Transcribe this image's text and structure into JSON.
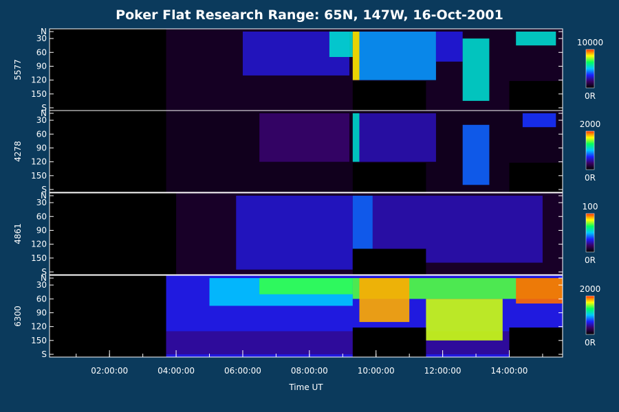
{
  "chart_data": {
    "type": "heatmap",
    "title": "Poker Flat Research Range: 65N, 147W, 16-Oct-2001",
    "xlabel": "Time UT",
    "x_ticks": [
      "02:00:00",
      "04:00:00",
      "06:00:00",
      "08:00:00",
      "10:00:00",
      "12:00:00",
      "14:00:00"
    ],
    "x_range_hours": [
      0.2,
      15.6
    ],
    "y_tick_labels": [
      "N",
      "30",
      "60",
      "90",
      "120",
      "150",
      "S"
    ],
    "y_range_deg": [
      15,
      180
    ],
    "colormap": [
      "#000000",
      "#3a0060",
      "#1a20ff",
      "#00c8ff",
      "#00ff60",
      "#ffff00",
      "#ff3000"
    ],
    "panels": [
      {
        "label": "5577",
        "cb_max": "10000",
        "cb_min": "0R",
        "data_start_hour": 3.7,
        "background_level": 0.06,
        "blank_intervals": [
          {
            "start_hour": 9.3,
            "end_hour": 11.5,
            "from_deg": 122
          },
          {
            "start_hour": 14.0,
            "end_hour": 15.6,
            "from_deg": 122
          }
        ],
        "features": [
          {
            "start_hour": 6.0,
            "end_hour": 9.2,
            "from_deg": 15,
            "to_deg": 110,
            "level": 0.28
          },
          {
            "start_hour": 8.6,
            "end_hour": 9.3,
            "from_deg": 15,
            "to_deg": 70,
            "level": 0.55
          },
          {
            "start_hour": 9.3,
            "end_hour": 9.5,
            "from_deg": 15,
            "to_deg": 120,
            "level": 0.85
          },
          {
            "start_hour": 9.5,
            "end_hour": 11.8,
            "from_deg": 15,
            "to_deg": 120,
            "level": 0.45
          },
          {
            "start_hour": 11.8,
            "end_hour": 12.6,
            "from_deg": 15,
            "to_deg": 80,
            "level": 0.3
          },
          {
            "start_hour": 12.6,
            "end_hour": 13.4,
            "from_deg": 30,
            "to_deg": 165,
            "level": 0.55
          },
          {
            "start_hour": 14.2,
            "end_hour": 15.4,
            "from_deg": 15,
            "to_deg": 45,
            "level": 0.55
          }
        ]
      },
      {
        "label": "4278",
        "cb_max": "2000",
        "cb_min": "0R",
        "data_start_hour": 3.7,
        "background_level": 0.05,
        "blank_intervals": [
          {
            "start_hour": 9.3,
            "end_hour": 11.5,
            "from_deg": 122
          },
          {
            "start_hour": 14.0,
            "end_hour": 15.6,
            "from_deg": 122
          }
        ],
        "features": [
          {
            "start_hour": 6.5,
            "end_hour": 9.2,
            "from_deg": 15,
            "to_deg": 120,
            "level": 0.18
          },
          {
            "start_hour": 9.3,
            "end_hour": 9.5,
            "from_deg": 15,
            "to_deg": 120,
            "level": 0.55
          },
          {
            "start_hour": 9.5,
            "end_hour": 11.8,
            "from_deg": 15,
            "to_deg": 120,
            "level": 0.25
          },
          {
            "start_hour": 12.6,
            "end_hour": 13.4,
            "from_deg": 40,
            "to_deg": 170,
            "level": 0.4
          },
          {
            "start_hour": 14.4,
            "end_hour": 15.4,
            "from_deg": 15,
            "to_deg": 45,
            "level": 0.35
          }
        ]
      },
      {
        "label": "4861",
        "cb_max": "100",
        "cb_min": "0R",
        "data_start_hour": 4.0,
        "background_level": 0.07,
        "blank_intervals": [
          {
            "start_hour": 9.3,
            "end_hour": 11.5,
            "from_deg": 130
          }
        ],
        "features": [
          {
            "start_hour": 5.8,
            "end_hour": 9.3,
            "from_deg": 15,
            "to_deg": 175,
            "level": 0.28
          },
          {
            "start_hour": 9.3,
            "end_hour": 9.9,
            "from_deg": 15,
            "to_deg": 130,
            "level": 0.4
          },
          {
            "start_hour": 9.9,
            "end_hour": 15.0,
            "from_deg": 15,
            "to_deg": 160,
            "level": 0.25
          }
        ]
      },
      {
        "label": "6300",
        "cb_max": "2000",
        "cb_min": "0R",
        "data_start_hour": 3.7,
        "background_level": 0.3,
        "blank_intervals": [
          {
            "start_hour": 9.3,
            "end_hour": 11.5,
            "from_deg": 122
          },
          {
            "start_hour": 14.0,
            "end_hour": 15.6,
            "from_deg": 122
          }
        ],
        "features": [
          {
            "start_hour": 3.7,
            "end_hour": 15.6,
            "from_deg": 130,
            "to_deg": 180,
            "level": 0.22
          },
          {
            "start_hour": 5.0,
            "end_hour": 9.3,
            "from_deg": 15,
            "to_deg": 75,
            "level": 0.5
          },
          {
            "start_hour": 6.5,
            "end_hour": 9.3,
            "from_deg": 15,
            "to_deg": 50,
            "level": 0.7
          },
          {
            "start_hour": 9.3,
            "end_hour": 15.6,
            "from_deg": 15,
            "to_deg": 60,
            "level": 0.72
          },
          {
            "start_hour": 9.5,
            "end_hour": 11.0,
            "from_deg": 15,
            "to_deg": 110,
            "level": 0.9
          },
          {
            "start_hour": 11.5,
            "end_hour": 13.8,
            "from_deg": 60,
            "to_deg": 150,
            "level": 0.8
          },
          {
            "start_hour": 14.2,
            "end_hour": 15.6,
            "from_deg": 15,
            "to_deg": 70,
            "level": 0.95
          }
        ]
      }
    ]
  }
}
